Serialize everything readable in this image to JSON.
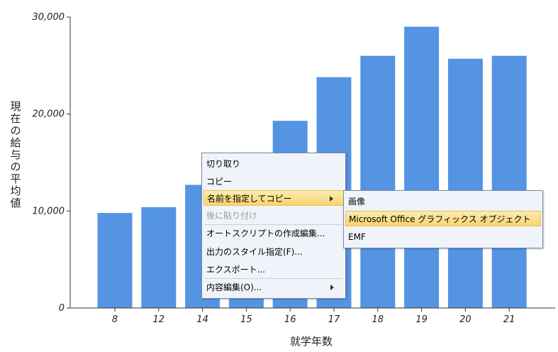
{
  "chart_data": {
    "type": "bar",
    "categories": [
      "8",
      "12",
      "14",
      "15",
      "16",
      "17",
      "18",
      "19",
      "20",
      "21"
    ],
    "values": [
      9800,
      10400,
      12700,
      13500,
      19300,
      23800,
      26000,
      29000,
      25700,
      26000
    ],
    "ylim": [
      0,
      30000
    ],
    "yticks": [
      "0",
      "10,000",
      "20,000",
      "30,000"
    ],
    "xlabel": "就学年数",
    "ylabel": "現在の給与の平均値",
    "bar_color": "#5594e3",
    "grid": false
  },
  "context_menu": {
    "items": [
      {
        "label": "切り取り",
        "enabled": true
      },
      {
        "label": "コピー",
        "enabled": true
      },
      {
        "label": "名前を指定してコピー",
        "enabled": true,
        "highlighted": true,
        "submenu": true
      },
      {
        "label": "後に貼り付け",
        "enabled": false
      },
      {
        "label": "オートスクリプトの作成編集...",
        "enabled": true
      },
      {
        "label": "出力のスタイル指定(F)...",
        "enabled": true
      },
      {
        "label": "エクスポート...",
        "enabled": true
      },
      {
        "label": "内容編集(O)...",
        "enabled": true,
        "submenu": true
      }
    ]
  },
  "submenu": {
    "items": [
      {
        "label": "画像"
      },
      {
        "label": "Microsoft Office グラフィックス オブジェクト",
        "highlighted": true
      },
      {
        "label": "EMF"
      }
    ]
  }
}
